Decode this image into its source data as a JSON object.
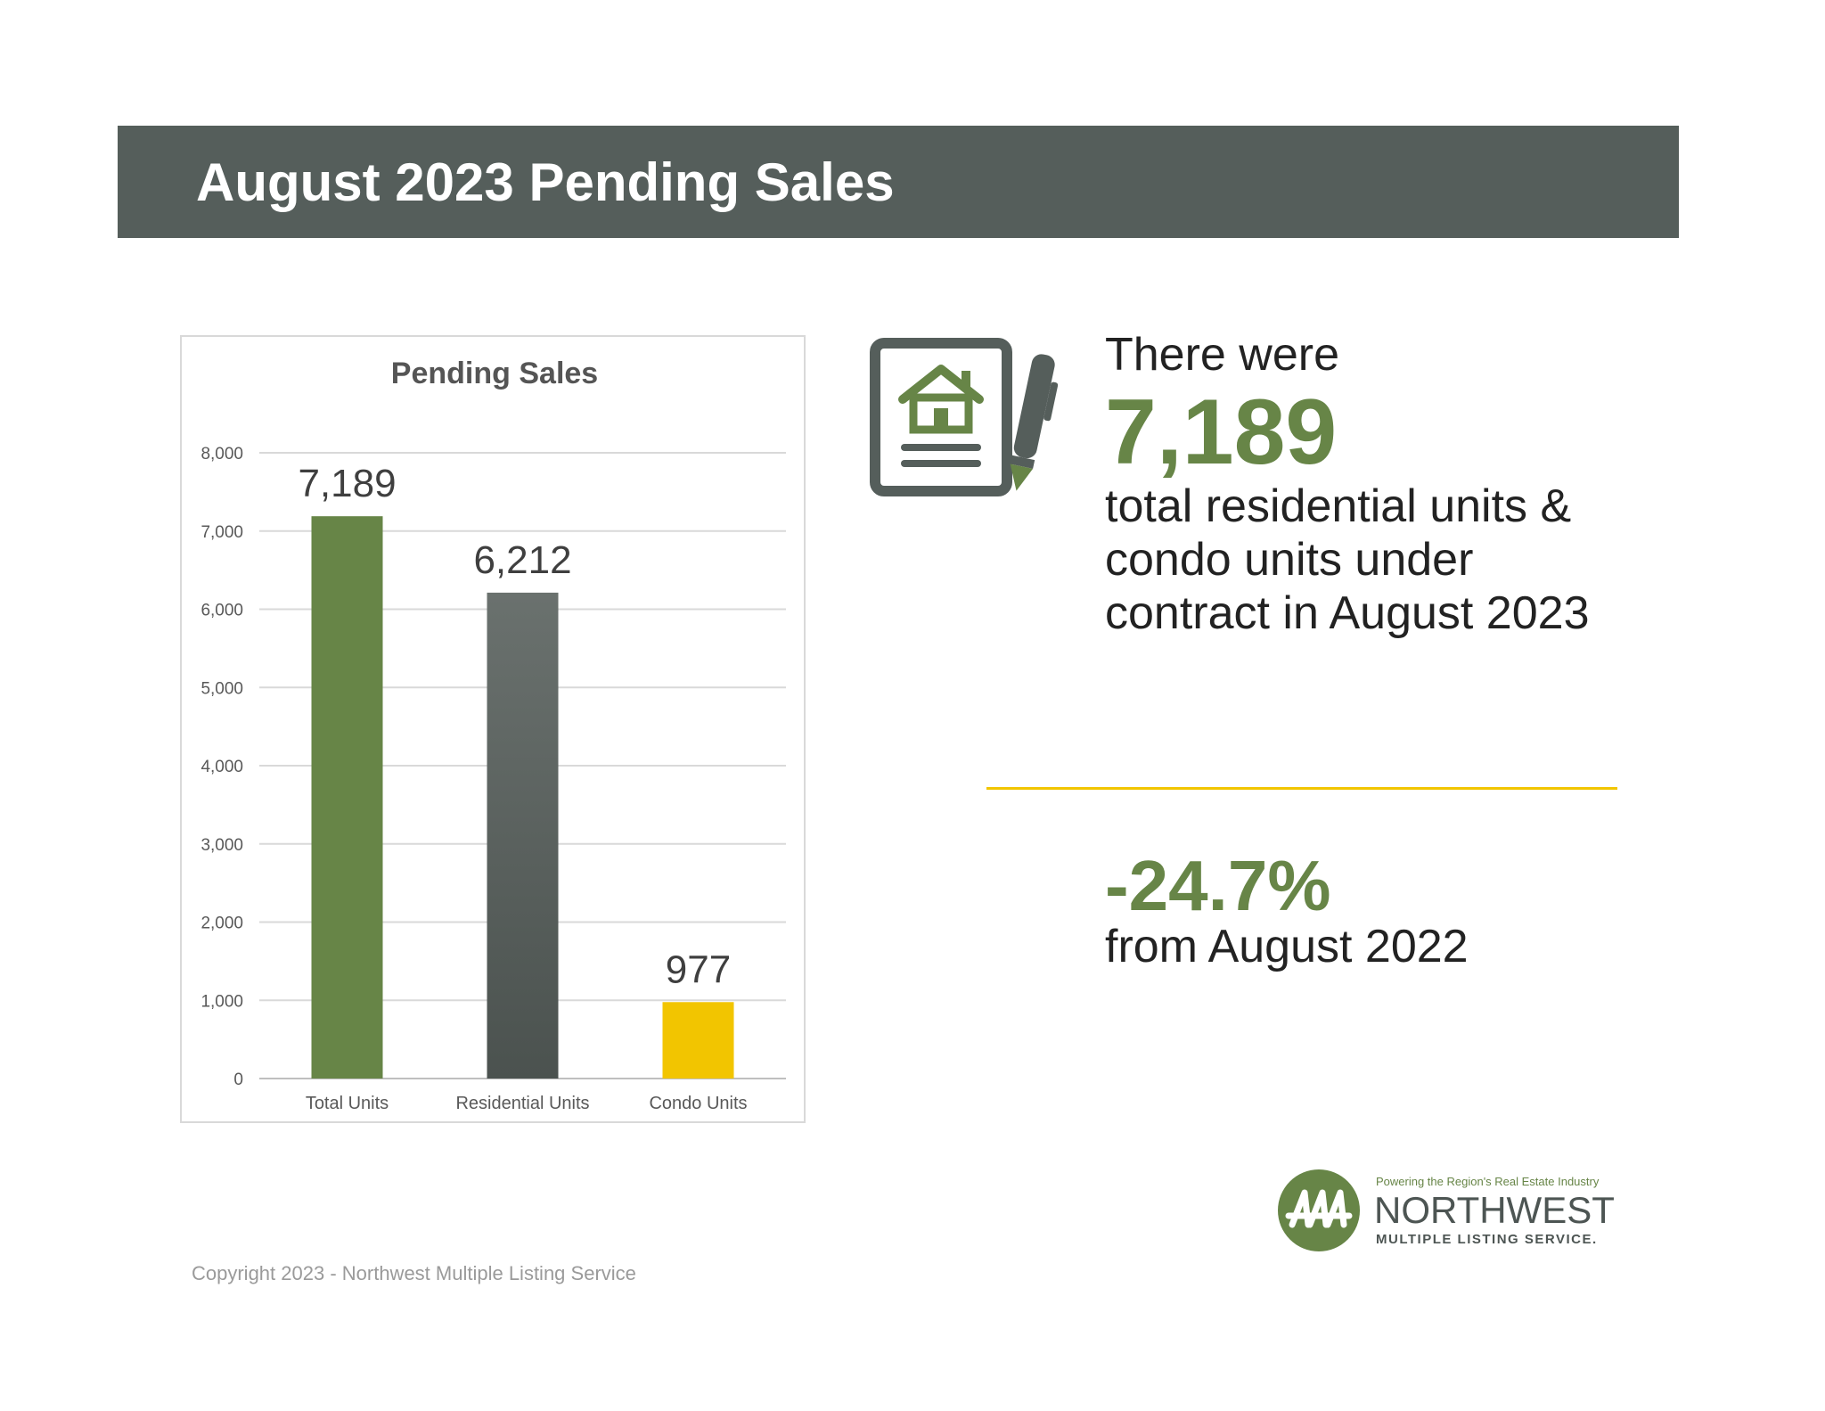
{
  "header": {
    "title": "August 2023 Pending Sales"
  },
  "chart_data": {
    "type": "bar",
    "title": "Pending Sales",
    "xlabel": "",
    "ylabel": "",
    "categories": [
      "Total Units",
      "Residential Units",
      "Condo Units"
    ],
    "values": [
      7189,
      6212,
      977
    ],
    "data_labels": [
      "7,189",
      "6,212",
      "977"
    ],
    "bar_colors": [
      "#678547",
      "#555e5b",
      "#f2c500"
    ],
    "ylim": [
      0,
      8000
    ],
    "yticks": [
      0,
      1000,
      2000,
      3000,
      4000,
      5000,
      6000,
      7000,
      8000
    ],
    "ytick_labels": [
      "0",
      "1,000",
      "2,000",
      "3,000",
      "4,000",
      "5,000",
      "6,000",
      "7,000",
      "8,000"
    ],
    "grid": true,
    "legend": "none"
  },
  "stat": {
    "intro": "There were",
    "value": "7,189",
    "description": "total residential units & condo units under contract in August 2023"
  },
  "change": {
    "value": "-24.7%",
    "label": "from August 2022"
  },
  "logo": {
    "tagline": "Powering the Region's Real Estate Industry",
    "name": "NORTHWEST",
    "subname": "MULTIPLE LISTING SERVICE."
  },
  "footer": {
    "copyright": "Copyright 2023 - Northwest Multiple Listing Service"
  },
  "colors": {
    "banner": "#555e5b",
    "accent_green": "#678547",
    "accent_yellow": "#f2c500",
    "icon_gray": "#555e5b"
  },
  "icons": {
    "contract": "document-house-pencil-icon",
    "logo": "nwmls-logo-icon"
  }
}
